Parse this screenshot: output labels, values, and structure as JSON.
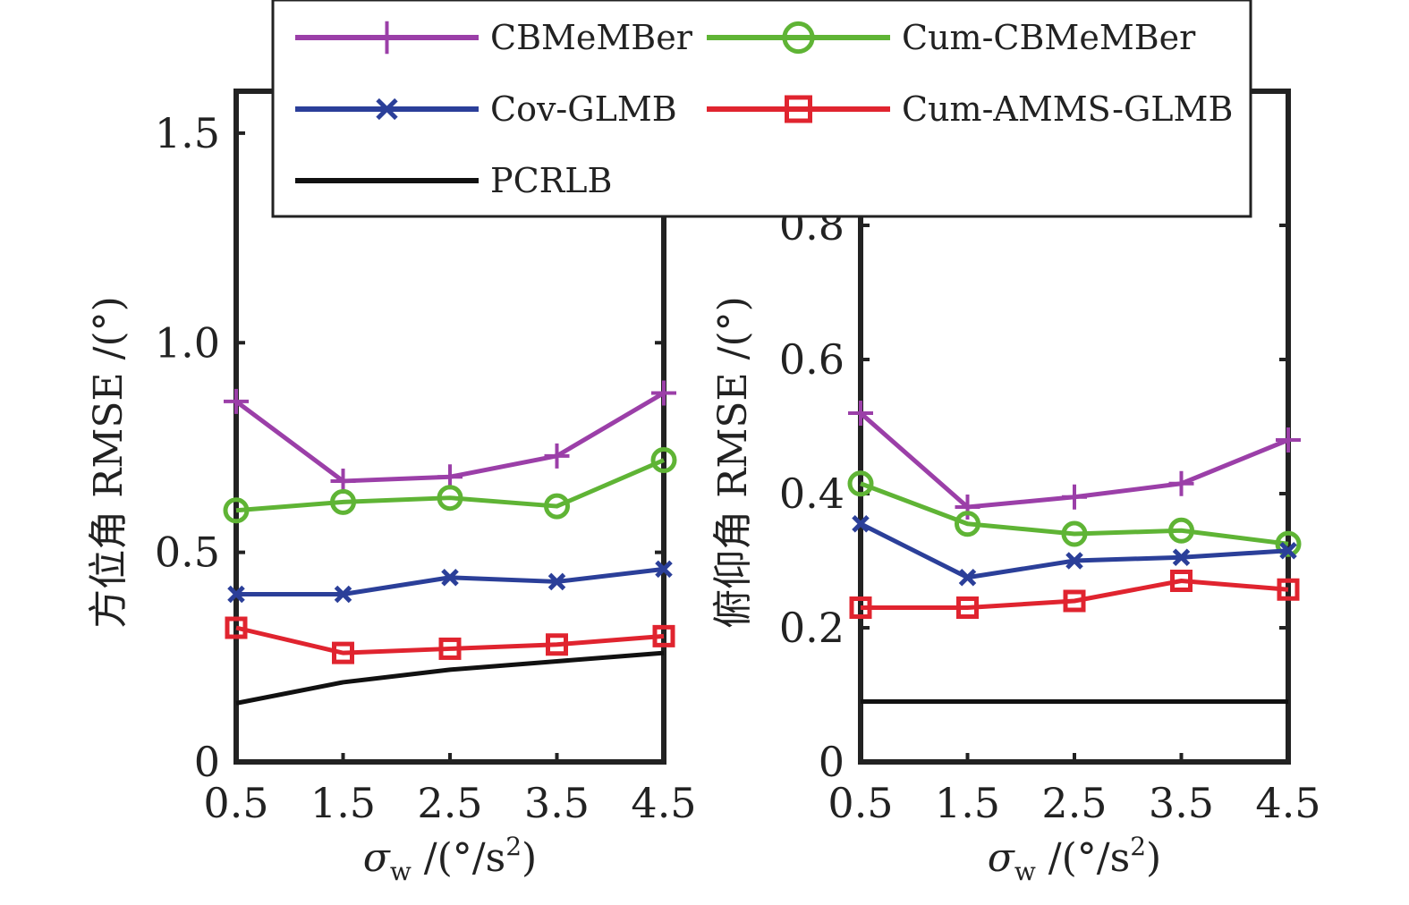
{
  "chart_data": [
    {
      "type": "line",
      "title": "",
      "xlabel": "σw /(°/s2)",
      "ylabel": "方位角 RMSE /(°)",
      "x": [
        0.5,
        1.5,
        2.5,
        3.5,
        4.5
      ],
      "xticks": [
        "0.5",
        "1.5",
        "2.5",
        "3.5",
        "4.5"
      ],
      "yticks": [
        "0",
        "0.5",
        "1.0",
        "1.5"
      ],
      "ylim": [
        0,
        1.6
      ],
      "grid": false,
      "series": [
        {
          "name": "CBMeMBer",
          "color": "#9b3fa8",
          "marker": "plus",
          "values": [
            0.86,
            0.67,
            0.68,
            0.73,
            0.88
          ]
        },
        {
          "name": "Cum-CBMeMBer",
          "color": "#5fb435",
          "marker": "circle",
          "values": [
            0.6,
            0.62,
            0.63,
            0.61,
            0.72
          ]
        },
        {
          "name": "Cov-GLMB",
          "color": "#2b3f99",
          "marker": "x",
          "values": [
            0.4,
            0.4,
            0.44,
            0.43,
            0.46
          ]
        },
        {
          "name": "Cum-AMMS-GLMB",
          "color": "#e0242f",
          "marker": "square",
          "values": [
            0.32,
            0.26,
            0.27,
            0.28,
            0.3
          ]
        },
        {
          "name": "PCRLB",
          "color": "#111111",
          "marker": "none",
          "values": [
            0.14,
            0.19,
            0.22,
            0.24,
            0.26
          ]
        }
      ]
    },
    {
      "type": "line",
      "title": "",
      "xlabel": "σw /(°/s2)",
      "ylabel": "俯仰角 RMSE /(°)",
      "x": [
        0.5,
        1.5,
        2.5,
        3.5,
        4.5
      ],
      "xticks": [
        "0.5",
        "1.5",
        "2.5",
        "3.5",
        "4.5"
      ],
      "yticks": [
        "0",
        "0.2",
        "0.4",
        "0.6",
        "0.8"
      ],
      "ylim": [
        0,
        1.0
      ],
      "grid": false,
      "series": [
        {
          "name": "CBMeMBer",
          "color": "#9b3fa8",
          "marker": "plus",
          "values": [
            0.52,
            0.38,
            0.395,
            0.415,
            0.48
          ]
        },
        {
          "name": "Cum-CBMeMBer",
          "color": "#5fb435",
          "marker": "circle",
          "values": [
            0.415,
            0.355,
            0.34,
            0.345,
            0.325
          ]
        },
        {
          "name": "Cov-GLMB",
          "color": "#2b3f99",
          "marker": "x",
          "values": [
            0.355,
            0.275,
            0.3,
            0.305,
            0.315
          ]
        },
        {
          "name": "Cum-AMMS-GLMB",
          "color": "#e0242f",
          "marker": "square",
          "values": [
            0.23,
            0.23,
            0.24,
            0.27,
            0.257
          ]
        },
        {
          "name": "PCRLB",
          "color": "#111111",
          "marker": "none",
          "values": [
            0.09,
            0.09,
            0.09,
            0.09,
            0.09
          ]
        }
      ]
    }
  ],
  "legend": {
    "placement": "top-center",
    "entries": [
      {
        "name": "CBMeMBer",
        "color": "#9b3fa8",
        "marker": "plus"
      },
      {
        "name": "Cum-CBMeMBer",
        "color": "#5fb435",
        "marker": "circle"
      },
      {
        "name": "Cov-GLMB",
        "color": "#2b3f99",
        "marker": "x"
      },
      {
        "name": "Cum-AMMS-GLMB",
        "color": "#e0242f",
        "marker": "square"
      },
      {
        "name": "PCRLB",
        "color": "#111111",
        "marker": "none"
      }
    ]
  }
}
